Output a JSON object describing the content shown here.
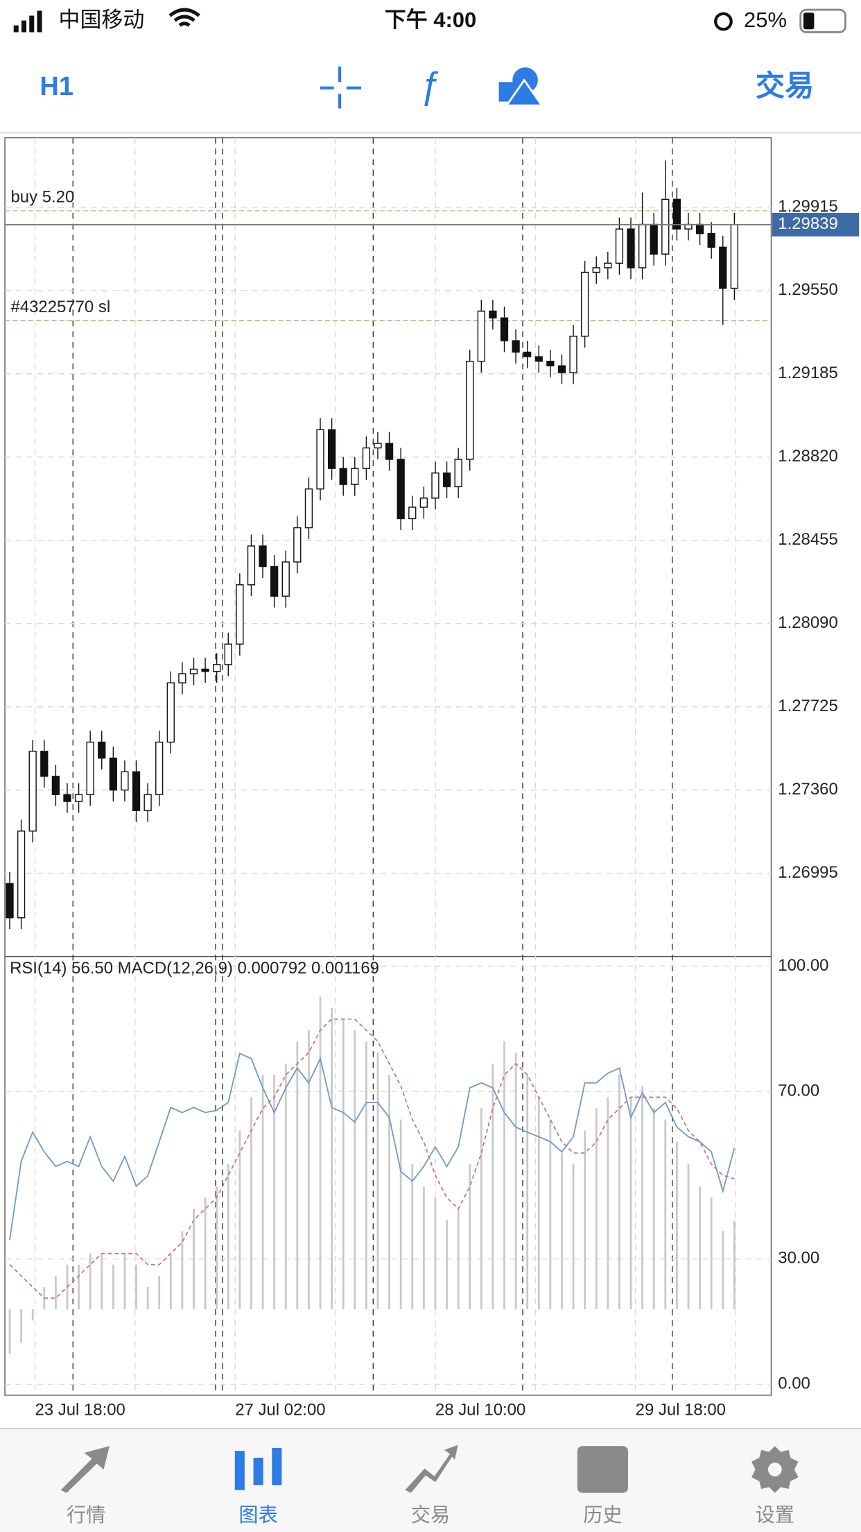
{
  "status_bar": {
    "carrier": "中国移动",
    "time": "下午 4:00",
    "battery": "25%"
  },
  "toolbar": {
    "timeframe": "H1",
    "trade": "交易"
  },
  "chart_data": [
    {
      "type": "candlestick",
      "xlim": [
        -0.42,
        66.2
      ],
      "xticks": [
        {
          "value": 2.2,
          "label": "23 Jul 18:00"
        },
        {
          "value": 19.6,
          "label": "27 Jul 02:00"
        },
        {
          "value": 37.0,
          "label": "28 Jul 10:00"
        },
        {
          "value": 54.4,
          "label": "29 Jul 18:00"
        }
      ],
      "period_separators": [
        5.5,
        17.9,
        18.5,
        31.6,
        44.6,
        57.6
      ],
      "ylim": [
        1.2663,
        1.3022
      ],
      "yticks": [
        1.29915,
        {
          "value": 1.2955,
          "label": "1.29550"
        },
        1.29185,
        {
          "value": 1.2882,
          "label": "1.28820"
        },
        1.28455,
        {
          "value": 1.2809,
          "label": "1.28090"
        },
        1.27725,
        {
          "value": 1.2736,
          "label": "1.27360"
        },
        1.26995
      ],
      "grid": true,
      "open": [
        1.2695,
        1.268,
        1.2718,
        1.2753,
        1.2742,
        1.2734,
        1.2731,
        1.2734,
        1.2757,
        1.275,
        1.2736,
        1.2744,
        1.2727,
        1.2734,
        1.2757,
        1.2783,
        1.2787,
        1.2789,
        1.2788,
        1.2791,
        1.28,
        1.2826,
        1.2843,
        1.2834,
        1.2821,
        1.2836,
        1.2851,
        1.2868,
        1.2894,
        1.2877,
        1.287,
        1.2877,
        1.2886,
        1.2888,
        1.2881,
        1.2855,
        1.286,
        1.2864,
        1.2875,
        1.2869,
        1.2881,
        1.2924,
        1.2946,
        1.2943,
        1.2933,
        1.2928,
        1.2926,
        1.2924,
        1.2922,
        1.2919,
        1.2935,
        1.2963,
        1.2965,
        1.2967,
        1.2982,
        1.2965,
        1.2984,
        1.2971,
        1.2995,
        1.2982,
        1.2984,
        1.298,
        1.2974,
        1.2956
      ],
      "high": [
        1.27,
        1.2723,
        1.2758,
        1.2758,
        1.2747,
        1.2739,
        1.2739,
        1.2762,
        1.2762,
        1.2755,
        1.2749,
        1.2749,
        1.2739,
        1.2762,
        1.2788,
        1.2792,
        1.2794,
        1.2794,
        1.2796,
        1.2805,
        1.2831,
        1.2848,
        1.2848,
        1.2839,
        1.2841,
        1.2856,
        1.2873,
        1.2899,
        1.2899,
        1.2882,
        1.2882,
        1.2891,
        1.2893,
        1.2893,
        1.2886,
        1.2865,
        1.2869,
        1.288,
        1.288,
        1.2886,
        1.2929,
        1.2951,
        1.2951,
        1.2948,
        1.2938,
        1.2933,
        1.2931,
        1.2929,
        1.2927,
        1.294,
        1.2968,
        1.297,
        1.2972,
        1.2987,
        1.2987,
        1.2998,
        1.2989,
        1.3012,
        1.3,
        1.2989,
        1.2989,
        1.2985,
        1.2979,
        1.2989
      ],
      "low": [
        1.2675,
        1.2675,
        1.2713,
        1.2737,
        1.2729,
        1.2726,
        1.2726,
        1.2729,
        1.2745,
        1.2731,
        1.2731,
        1.2722,
        1.2722,
        1.2729,
        1.2752,
        1.2778,
        1.2782,
        1.2783,
        1.2783,
        1.2786,
        1.2795,
        1.2821,
        1.2829,
        1.2816,
        1.2816,
        1.2831,
        1.2846,
        1.2863,
        1.2872,
        1.2865,
        1.2865,
        1.2872,
        1.2881,
        1.2876,
        1.285,
        1.285,
        1.2855,
        1.2859,
        1.2864,
        1.2864,
        1.2876,
        1.2919,
        1.2938,
        1.2928,
        1.2923,
        1.2921,
        1.2919,
        1.2917,
        1.2914,
        1.2914,
        1.293,
        1.2958,
        1.296,
        1.2962,
        1.296,
        1.296,
        1.2966,
        1.2966,
        1.2977,
        1.2977,
        1.2975,
        1.2969,
        1.294,
        1.2951
      ],
      "close": [
        1.268,
        1.2718,
        1.2753,
        1.2742,
        1.2734,
        1.2731,
        1.2734,
        1.2757,
        1.275,
        1.2736,
        1.2744,
        1.2727,
        1.2734,
        1.2757,
        1.2783,
        1.2787,
        1.2789,
        1.2788,
        1.2791,
        1.28,
        1.2826,
        1.2843,
        1.2834,
        1.2821,
        1.2836,
        1.2851,
        1.2868,
        1.2894,
        1.2877,
        1.287,
        1.2877,
        1.2886,
        1.2888,
        1.2881,
        1.2855,
        1.286,
        1.2864,
        1.2875,
        1.2869,
        1.2881,
        1.2924,
        1.2946,
        1.2943,
        1.2933,
        1.2928,
        1.2926,
        1.2924,
        1.2922,
        1.2919,
        1.2935,
        1.2963,
        1.2965,
        1.2967,
        1.2982,
        1.2965,
        1.2984,
        1.2971,
        1.2995,
        1.2982,
        1.2984,
        1.298,
        1.2974,
        1.2956,
        1.29839
      ],
      "levels": [
        {
          "label": "buy 5.20",
          "value": 1.299,
          "color": "#d6c48a"
        },
        {
          "label": "#43225770 sl",
          "value": 1.29418,
          "color": "#d9a66a"
        }
      ],
      "bid": 1.29839,
      "bid_color": "#3d6aa5"
    },
    {
      "type": "indicator",
      "xlim": [
        -0.42,
        66.2
      ],
      "ylim": [
        -2.6,
        102.3
      ],
      "yticks": [
        {
          "value": 100,
          "label": "100.00"
        },
        {
          "value": 70,
          "label": "70.00"
        },
        {
          "value": 30,
          "label": "30.00"
        },
        {
          "value": 0,
          "label": "0.00"
        }
      ],
      "y2lim": [
        -0.00077,
        0.00316
      ],
      "rsi": {
        "name": "RSI(14)",
        "current_label": "56.50",
        "color": "#6e9acb",
        "values": [
          34.5,
          53.3,
          60.3,
          55.6,
          52.1,
          53.3,
          52.1,
          59.2,
          52.1,
          48.6,
          54.5,
          47.4,
          49.8,
          58.0,
          66.2,
          65.0,
          66.2,
          65.0,
          65.5,
          67.4,
          79.1,
          77.9,
          70.9,
          65.0,
          70.9,
          75.6,
          72.1,
          77.9,
          66.2,
          65.0,
          62.7,
          67.4,
          67.4,
          63.8,
          50.9,
          48.6,
          52.1,
          56.8,
          52.1,
          56.8,
          70.9,
          72.1,
          70.9,
          65.0,
          61.5,
          60.3,
          59.2,
          58.0,
          55.6,
          59.2,
          72.1,
          72.1,
          74.4,
          75.6,
          63.8,
          69.7,
          65.0,
          67.4,
          61.5,
          59.2,
          58.0,
          55.6,
          46.2,
          56.5
        ]
      },
      "macd": {
        "name": "MACD(12,26,9)",
        "color": "#c9c9c9",
        "signal_color": "#d06a6a",
        "values": [
          -0.0004,
          -0.0003,
          -0.0001,
          0.0002,
          0.0003,
          0.0004,
          0.0004,
          0.0005,
          0.0005,
          0.0004,
          0.0005,
          0.0004,
          0.0002,
          0.0003,
          0.0005,
          0.0007,
          0.0009,
          0.001,
          0.0011,
          0.0013,
          0.0016,
          0.0019,
          0.0021,
          0.0021,
          0.0022,
          0.0024,
          0.0025,
          0.0028,
          0.0027,
          0.0026,
          0.0025,
          0.0024,
          0.0023,
          0.0021,
          0.0017,
          0.0013,
          0.0011,
          0.001,
          0.0008,
          0.0009,
          0.0013,
          0.0018,
          0.0022,
          0.0024,
          0.0023,
          0.0021,
          0.0019,
          0.0017,
          0.0014,
          0.0013,
          0.0016,
          0.0018,
          0.0019,
          0.0021,
          0.0019,
          0.002,
          0.0018,
          0.0017,
          0.0015,
          0.0013,
          0.0011,
          0.001,
          0.0007,
          0.000792
        ],
        "signal": [
          0.0004,
          0.0003,
          0.0002,
          0.0001,
          0.0001,
          0.0002,
          0.0003,
          0.0004,
          0.0005,
          0.0005,
          0.0005,
          0.0005,
          0.0004,
          0.0004,
          0.0005,
          0.0006,
          0.0008,
          0.0009,
          0.001,
          0.0012,
          0.0014,
          0.0016,
          0.0018,
          0.0019,
          0.0021,
          0.0022,
          0.0023,
          0.0025,
          0.0026,
          0.0026,
          0.0026,
          0.0025,
          0.0024,
          0.0022,
          0.002,
          0.0017,
          0.0015,
          0.0012,
          0.001,
          0.0009,
          0.0011,
          0.0014,
          0.0018,
          0.0021,
          0.0022,
          0.0021,
          0.0019,
          0.0017,
          0.0015,
          0.0014,
          0.0014,
          0.0015,
          0.0017,
          0.0018,
          0.0019,
          0.0019,
          0.0019,
          0.0019,
          0.0018,
          0.0016,
          0.0015,
          0.0013,
          0.0012,
          0.001169
        ]
      }
    }
  ],
  "tab_bar": {
    "tabs": [
      "行情",
      "图表",
      "交易",
      "历史",
      "设置"
    ],
    "active": 1
  }
}
